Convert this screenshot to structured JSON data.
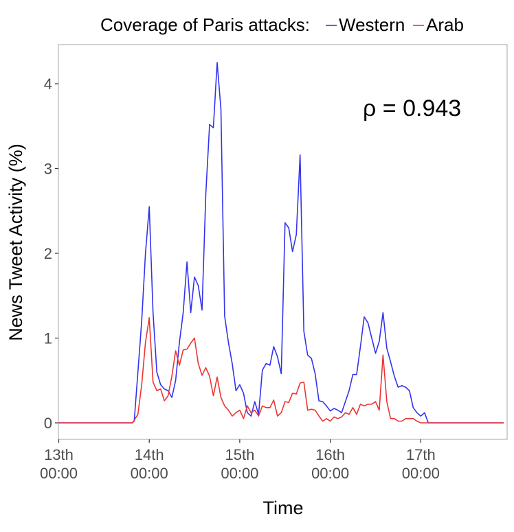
{
  "chart_data": {
    "type": "line",
    "legend": {
      "title": "Coverage of Paris attacks:",
      "position": "top"
    },
    "xlabel": "Time",
    "ylabel": "News Tweet Activity (%)",
    "annotation": "ρ = 0.943",
    "grid": false,
    "x_unit": "hours since 13th 00:00",
    "xlim": [
      0,
      118
    ],
    "ylim": [
      -0.2,
      4.45
    ],
    "x_ticks": [
      {
        "value": 0,
        "line1": "13th",
        "line2": "00:00"
      },
      {
        "value": 24,
        "line1": "14th",
        "line2": "00:00"
      },
      {
        "value": 48,
        "line1": "15th",
        "line2": "00:00"
      },
      {
        "value": 72,
        "line1": "16th",
        "line2": "00:00"
      },
      {
        "value": 96,
        "line1": "17th",
        "line2": "00:00"
      }
    ],
    "y_ticks": [
      0,
      1,
      2,
      3,
      4
    ],
    "series": [
      {
        "name": "Western",
        "color": "#3333ee",
        "points": [
          [
            0,
            0
          ],
          [
            19.5,
            0
          ],
          [
            20,
            0.02
          ],
          [
            21,
            0.6
          ],
          [
            22,
            1.2
          ],
          [
            23,
            2.0
          ],
          [
            24,
            2.55
          ],
          [
            25,
            1.3
          ],
          [
            26,
            0.6
          ],
          [
            27,
            0.45
          ],
          [
            28,
            0.4
          ],
          [
            29,
            0.38
          ],
          [
            30,
            0.3
          ],
          [
            31,
            0.5
          ],
          [
            32,
            0.95
          ],
          [
            33,
            1.3
          ],
          [
            34,
            1.9
          ],
          [
            35,
            1.3
          ],
          [
            36,
            1.72
          ],
          [
            37,
            1.62
          ],
          [
            38,
            1.33
          ],
          [
            39,
            2.7
          ],
          [
            40,
            3.52
          ],
          [
            41,
            3.48
          ],
          [
            42,
            4.25
          ],
          [
            43,
            3.7
          ],
          [
            44,
            1.26
          ],
          [
            45,
            0.95
          ],
          [
            46,
            0.7
          ],
          [
            47,
            0.38
          ],
          [
            48,
            0.45
          ],
          [
            49,
            0.35
          ],
          [
            50,
            0.12
          ],
          [
            51,
            0.08
          ],
          [
            52,
            0.25
          ],
          [
            53,
            0.1
          ],
          [
            54,
            0.62
          ],
          [
            55,
            0.7
          ],
          [
            56,
            0.68
          ],
          [
            57,
            0.9
          ],
          [
            58,
            0.78
          ],
          [
            59,
            0.58
          ],
          [
            60,
            2.36
          ],
          [
            61,
            2.3
          ],
          [
            62,
            2.02
          ],
          [
            63,
            2.22
          ],
          [
            64,
            3.16
          ],
          [
            65,
            1.08
          ],
          [
            66,
            0.8
          ],
          [
            67,
            0.76
          ],
          [
            68,
            0.58
          ],
          [
            69,
            0.26
          ],
          [
            70,
            0.25
          ],
          [
            71,
            0.2
          ],
          [
            72,
            0.14
          ],
          [
            73,
            0.17
          ],
          [
            74,
            0.15
          ],
          [
            75,
            0.12
          ],
          [
            76,
            0.25
          ],
          [
            77,
            0.38
          ],
          [
            78,
            0.57
          ],
          [
            79,
            0.57
          ],
          [
            80,
            0.9
          ],
          [
            81,
            1.25
          ],
          [
            82,
            1.18
          ],
          [
            83,
            1.0
          ],
          [
            84,
            0.82
          ],
          [
            85,
            0.96
          ],
          [
            86,
            1.3
          ],
          [
            87,
            0.88
          ],
          [
            88,
            0.72
          ],
          [
            89,
            0.55
          ],
          [
            90,
            0.42
          ],
          [
            91,
            0.44
          ],
          [
            92,
            0.42
          ],
          [
            93,
            0.38
          ],
          [
            94,
            0.18
          ],
          [
            95,
            0.12
          ],
          [
            96,
            0.08
          ],
          [
            97,
            0.12
          ],
          [
            98,
            0.0
          ],
          [
            118,
            0
          ]
        ]
      },
      {
        "name": "Arab",
        "color": "#ee3333",
        "points": [
          [
            0,
            0
          ],
          [
            19.5,
            0
          ],
          [
            20,
            0.03
          ],
          [
            21,
            0.1
          ],
          [
            22,
            0.45
          ],
          [
            23,
            0.95
          ],
          [
            24,
            1.24
          ],
          [
            25,
            0.48
          ],
          [
            26,
            0.38
          ],
          [
            27,
            0.4
          ],
          [
            28,
            0.26
          ],
          [
            29,
            0.32
          ],
          [
            30,
            0.55
          ],
          [
            31,
            0.85
          ],
          [
            32,
            0.68
          ],
          [
            33,
            0.86
          ],
          [
            34,
            0.87
          ],
          [
            35,
            0.94
          ],
          [
            36,
            1.0
          ],
          [
            37,
            0.7
          ],
          [
            38,
            0.56
          ],
          [
            39,
            0.65
          ],
          [
            40,
            0.55
          ],
          [
            41,
            0.32
          ],
          [
            42,
            0.54
          ],
          [
            43,
            0.3
          ],
          [
            44,
            0.2
          ],
          [
            45,
            0.15
          ],
          [
            46,
            0.08
          ],
          [
            47,
            0.12
          ],
          [
            48,
            0.15
          ],
          [
            49,
            0.05
          ],
          [
            50,
            0.2
          ],
          [
            51,
            0.12
          ],
          [
            52,
            0.15
          ],
          [
            53,
            0.08
          ],
          [
            54,
            0.2
          ],
          [
            55,
            0.18
          ],
          [
            56,
            0.18
          ],
          [
            57,
            0.27
          ],
          [
            58,
            0.08
          ],
          [
            59,
            0.12
          ],
          [
            60,
            0.25
          ],
          [
            61,
            0.24
          ],
          [
            62,
            0.35
          ],
          [
            63,
            0.34
          ],
          [
            64,
            0.47
          ],
          [
            65,
            0.48
          ],
          [
            66,
            0.15
          ],
          [
            67,
            0.16
          ],
          [
            68,
            0.15
          ],
          [
            69,
            0.08
          ],
          [
            70,
            0.02
          ],
          [
            71,
            0.05
          ],
          [
            72,
            0.02
          ],
          [
            73,
            0.07
          ],
          [
            74,
            0.05
          ],
          [
            75,
            0.07
          ],
          [
            76,
            0.12
          ],
          [
            77,
            0.1
          ],
          [
            78,
            0.18
          ],
          [
            79,
            0.1
          ],
          [
            80,
            0.22
          ],
          [
            81,
            0.2
          ],
          [
            82,
            0.22
          ],
          [
            83,
            0.22
          ],
          [
            84,
            0.25
          ],
          [
            85,
            0.15
          ],
          [
            86,
            0.8
          ],
          [
            87,
            0.25
          ],
          [
            88,
            0.05
          ],
          [
            89,
            0.05
          ],
          [
            90,
            0.02
          ],
          [
            91,
            0.02
          ],
          [
            92,
            0.05
          ],
          [
            93,
            0.05
          ],
          [
            94,
            0.05
          ],
          [
            95,
            0.02
          ],
          [
            96,
            0.0
          ],
          [
            118,
            0
          ]
        ]
      }
    ]
  }
}
